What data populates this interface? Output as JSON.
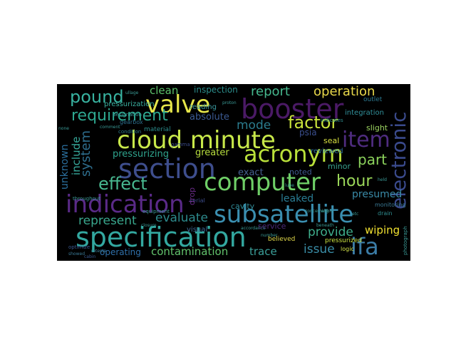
{
  "words": [
    {
      "text": "specification",
      "color": "#33a8a0"
    },
    {
      "text": "subsatellite",
      "color": "#3b8fb0"
    },
    {
      "text": "indication",
      "color": "#5a2a88"
    },
    {
      "text": "section",
      "color": "#3e4e8d"
    },
    {
      "text": "computer",
      "color": "#6fcf67"
    },
    {
      "text": "cloud minute",
      "color": "#c8e84a"
    },
    {
      "text": "acronym",
      "color": "#b9e03a"
    },
    {
      "text": "booster",
      "color": "#4b1a66"
    },
    {
      "text": "valve",
      "color": "#e6e64a"
    },
    {
      "text": "requirement",
      "color": "#2ea890"
    },
    {
      "text": "electronic",
      "color": "#3a4a8c"
    },
    {
      "text": "ifa",
      "color": "#3b7ca6"
    },
    {
      "text": "effect",
      "color": "#48b890"
    },
    {
      "text": "factor",
      "color": "#c9e33b"
    },
    {
      "text": "item",
      "color": "#4f2c80"
    },
    {
      "text": "pound",
      "color": "#38b2a0"
    },
    {
      "text": "report",
      "color": "#46b88e"
    },
    {
      "text": "operation",
      "color": "#e8d84a"
    },
    {
      "text": "hour",
      "color": "#9bd85a"
    },
    {
      "text": "part",
      "color": "#8cd35c"
    },
    {
      "text": "represent",
      "color": "#39a78d"
    },
    {
      "text": "evaluate",
      "color": "#2d8a8c"
    },
    {
      "text": "provide",
      "color": "#3fae8c"
    },
    {
      "text": "wiping",
      "color": "#f0e030"
    },
    {
      "text": "issue",
      "color": "#3a8ea8"
    },
    {
      "text": "contamination",
      "color": "#62c36c"
    },
    {
      "text": "trace",
      "color": "#3ba09a"
    },
    {
      "text": "operating",
      "color": "#2f6fa8"
    },
    {
      "text": "mode",
      "color": "#2b7c8e"
    },
    {
      "text": "system",
      "color": "#2e6e8e"
    },
    {
      "text": "include",
      "color": "#36a89a"
    },
    {
      "text": "unknown",
      "color": "#2b6e9c"
    },
    {
      "text": "clean",
      "color": "#5cc06a"
    },
    {
      "text": "absolute",
      "color": "#3b5a92"
    },
    {
      "text": "pressurizing",
      "color": "#2fa48e"
    },
    {
      "text": "greater",
      "color": "#b8de3e"
    },
    {
      "text": "exact",
      "color": "#46608f"
    },
    {
      "text": "presumed",
      "color": "#3a8ba8"
    },
    {
      "text": "leaked",
      "color": "#2a7c94"
    },
    {
      "text": "noted",
      "color": "#3f5a90"
    },
    {
      "text": "minor",
      "color": "#37a08c"
    },
    {
      "text": "inspection",
      "color": "#2b8c8a"
    },
    {
      "text": "integration",
      "color": "#31909a"
    },
    {
      "text": "reviewed",
      "color": "#2d6f9a"
    },
    {
      "text": "seal",
      "color": "#d8e040"
    },
    {
      "text": "slight",
      "color": "#9cd460"
    },
    {
      "text": "psia",
      "color": "#3b4f8e"
    },
    {
      "text": "cavity",
      "color": "#2f8a96"
    },
    {
      "text": "pressurization",
      "color": "#3ab0a0"
    },
    {
      "text": "reading",
      "color": "#3a9aa0"
    },
    {
      "text": "material",
      "color": "#2c8c8c"
    },
    {
      "text": "visual",
      "color": "#3f6a96"
    },
    {
      "text": "pressurized",
      "color": "#c8e040"
    },
    {
      "text": "believed",
      "color": "#e0d84a"
    },
    {
      "text": "serial",
      "color": "#3c4c8a"
    },
    {
      "text": "drop",
      "color": "#6a2c88"
    },
    {
      "text": "outlet",
      "color": "#2c7a92"
    },
    {
      "text": "logic",
      "color": "#d0e048"
    },
    {
      "text": "gearbox",
      "color": "#2c6e8c"
    },
    {
      "text": "condition",
      "color": "#2f7c8c"
    },
    {
      "text": "designation",
      "color": "#3a9a96"
    },
    {
      "text": "monitoring",
      "color": "#3a7a96"
    },
    {
      "text": "drain",
      "color": "#2f8e90"
    },
    {
      "text": "indicates",
      "color": "#2f8e90"
    },
    {
      "text": "gamma",
      "color": "#3c4c8a"
    },
    {
      "text": "throughout",
      "color": "#3a9a96"
    },
    {
      "text": "equipment",
      "color": "#3a9a96"
    },
    {
      "text": "optimize",
      "color": "#3a5a92"
    },
    {
      "text": "retests",
      "color": "#3a7a96"
    },
    {
      "text": "closure",
      "color": "#3a9a96"
    },
    {
      "text": "showed",
      "color": "#3a7a96"
    },
    {
      "text": "cabin",
      "color": "#3a5a92"
    },
    {
      "text": "comment",
      "color": "#3a9a96"
    },
    {
      "text": "photograph",
      "color": "#3a9a96"
    },
    {
      "text": "within",
      "color": "#3a9a96"
    },
    {
      "text": "beneath",
      "color": "#3a9a96"
    },
    {
      "text": "number",
      "color": "#3a9a96"
    },
    {
      "text": "accordance",
      "color": "#3a9a96"
    },
    {
      "text": "concerning",
      "color": "#3a9a96"
    },
    {
      "text": "service",
      "color": "#4b2a7a"
    },
    {
      "text": "held",
      "color": "#3a9a96"
    },
    {
      "text": "etc",
      "color": "#3a9a96"
    },
    {
      "text": "lube",
      "color": "#3a9a96"
    },
    {
      "text": "proton",
      "color": "#3a9a96"
    },
    {
      "text": "ullage",
      "color": "#3a9a96"
    },
    {
      "text": "none",
      "color": "#3a9a96"
    }
  ]
}
